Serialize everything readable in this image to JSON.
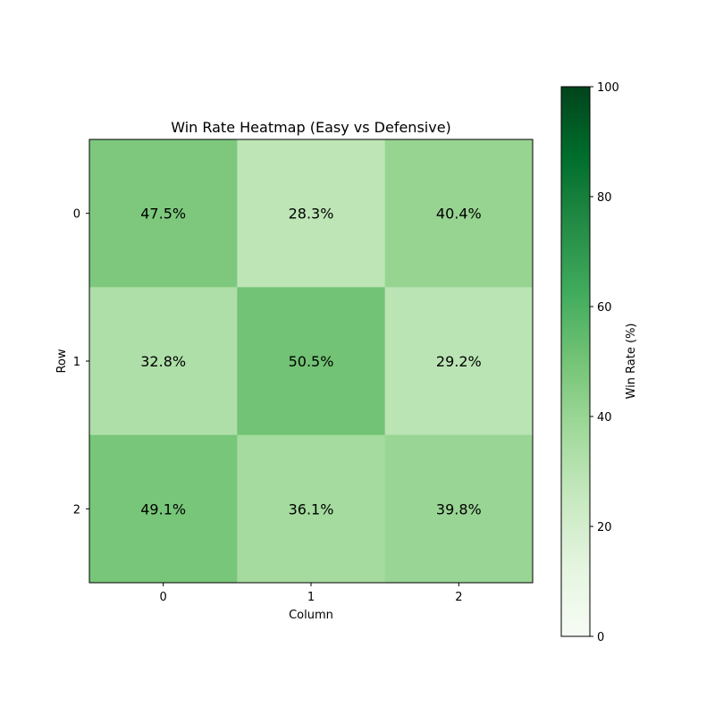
{
  "chart_data": {
    "type": "heatmap",
    "title": "Win Rate Heatmap (Easy vs Defensive)",
    "xlabel": "Column",
    "ylabel": "Row",
    "x_categories": [
      "0",
      "1",
      "2"
    ],
    "y_categories": [
      "0",
      "1",
      "2"
    ],
    "values": [
      [
        47.5,
        28.3,
        40.4
      ],
      [
        32.8,
        50.5,
        29.2
      ],
      [
        49.1,
        36.1,
        39.8
      ]
    ],
    "cell_labels": [
      [
        "47.5%",
        "28.3%",
        "40.4%"
      ],
      [
        "32.8%",
        "50.5%",
        "29.2%"
      ],
      [
        "49.1%",
        "36.1%",
        "39.8%"
      ]
    ],
    "colormap": "Greens",
    "vmin": 0,
    "vmax": 100,
    "colorbar": {
      "label": "Win Rate (%)",
      "ticks": [
        0,
        20,
        40,
        60,
        80,
        100
      ]
    }
  }
}
